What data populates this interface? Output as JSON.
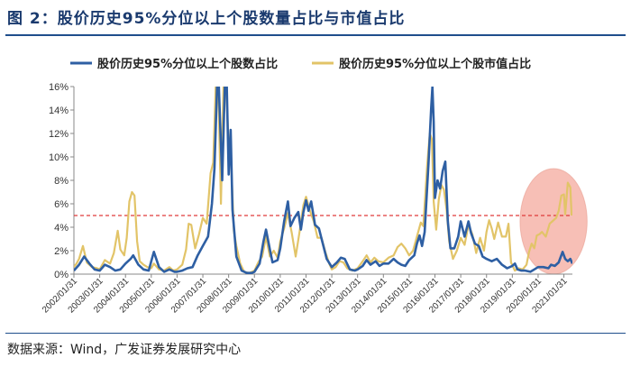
{
  "figure": {
    "title": "图 2：股价历史95%分位以上个股数量占比与市值占比",
    "source": "数据来源：Wind，广发证券发展研究中心"
  },
  "colors": {
    "series_count": "#2e5fa3",
    "series_mcap": "#e2c468",
    "threshold": "#e03a3a",
    "highlight_fill": "#f08a7a",
    "title": "#1a3a6e"
  },
  "chart_data": {
    "type": "line",
    "title": "",
    "xlabel": "",
    "ylabel": "",
    "ylim": [
      0,
      16
    ],
    "ytick_step": 2,
    "yticks": [
      "0%",
      "2%",
      "4%",
      "6%",
      "8%",
      "10%",
      "12%",
      "14%",
      "16%"
    ],
    "xlim": [
      2002.0,
      2021.33
    ],
    "xticks": [
      "2002/01/31",
      "2003/01/31",
      "2004/01/31",
      "2005/01/31",
      "2006/01/31",
      "2007/01/31",
      "2008/01/31",
      "2009/01/31",
      "2010/01/31",
      "2011/01/31",
      "2012/01/31",
      "2013/01/31",
      "2014/01/31",
      "2015/01/31",
      "2016/01/31",
      "2017/01/31",
      "2018/01/31",
      "2019/01/31",
      "2020/01/31",
      "2021/01/31"
    ],
    "reference_line": {
      "y": 5,
      "style": "dashed"
    },
    "highlight_region": {
      "x": [
        2019.3,
        2021.9
      ],
      "y": [
        0,
        9
      ]
    },
    "legend_position": "top",
    "series": [
      {
        "name": "股价历史95%分位以上个股数占比",
        "points": [
          [
            2002.0,
            0.3
          ],
          [
            2002.2,
            0.8
          ],
          [
            2002.4,
            1.5
          ],
          [
            2002.6,
            0.9
          ],
          [
            2002.8,
            0.4
          ],
          [
            2003.0,
            0.3
          ],
          [
            2003.2,
            0.8
          ],
          [
            2003.4,
            0.6
          ],
          [
            2003.6,
            0.3
          ],
          [
            2003.8,
            0.4
          ],
          [
            2004.0,
            0.9
          ],
          [
            2004.2,
            1.3
          ],
          [
            2004.3,
            1.6
          ],
          [
            2004.5,
            0.8
          ],
          [
            2004.7,
            0.4
          ],
          [
            2004.9,
            0.3
          ],
          [
            2005.0,
            1.1
          ],
          [
            2005.1,
            1.9
          ],
          [
            2005.3,
            0.6
          ],
          [
            2005.5,
            0.2
          ],
          [
            2005.7,
            0.4
          ],
          [
            2005.9,
            0.2
          ],
          [
            2006.0,
            0.2
          ],
          [
            2006.2,
            0.3
          ],
          [
            2006.4,
            0.5
          ],
          [
            2006.6,
            0.6
          ],
          [
            2006.8,
            1.6
          ],
          [
            2007.0,
            2.4
          ],
          [
            2007.2,
            3.2
          ],
          [
            2007.35,
            6.0
          ],
          [
            2007.45,
            9.0
          ],
          [
            2007.55,
            16.0
          ],
          [
            2007.62,
            16.0
          ],
          [
            2007.75,
            8.0
          ],
          [
            2007.85,
            16.0
          ],
          [
            2007.93,
            16.0
          ],
          [
            2008.0,
            8.5
          ],
          [
            2008.08,
            12.3
          ],
          [
            2008.15,
            5.5
          ],
          [
            2008.3,
            1.5
          ],
          [
            2008.5,
            0.3
          ],
          [
            2008.7,
            0.1
          ],
          [
            2008.9,
            0.1
          ],
          [
            2009.0,
            0.2
          ],
          [
            2009.2,
            0.9
          ],
          [
            2009.35,
            2.8
          ],
          [
            2009.45,
            3.8
          ],
          [
            2009.6,
            2.1
          ],
          [
            2009.7,
            1.0
          ],
          [
            2009.9,
            1.2
          ],
          [
            2010.0,
            2.2
          ],
          [
            2010.15,
            4.5
          ],
          [
            2010.3,
            6.2
          ],
          [
            2010.4,
            4.1
          ],
          [
            2010.55,
            4.8
          ],
          [
            2010.7,
            5.3
          ],
          [
            2010.8,
            3.8
          ],
          [
            2010.9,
            5.3
          ],
          [
            2011.0,
            6.3
          ],
          [
            2011.1,
            5.4
          ],
          [
            2011.2,
            6.2
          ],
          [
            2011.35,
            4.2
          ],
          [
            2011.5,
            3.9
          ],
          [
            2011.65,
            2.6
          ],
          [
            2011.8,
            1.3
          ],
          [
            2012.0,
            0.6
          ],
          [
            2012.2,
            1.0
          ],
          [
            2012.35,
            1.4
          ],
          [
            2012.5,
            1.3
          ],
          [
            2012.7,
            0.4
          ],
          [
            2012.9,
            0.3
          ],
          [
            2013.0,
            0.4
          ],
          [
            2013.2,
            0.7
          ],
          [
            2013.35,
            1.2
          ],
          [
            2013.5,
            0.8
          ],
          [
            2013.7,
            1.1
          ],
          [
            2013.85,
            0.7
          ],
          [
            2014.0,
            0.9
          ],
          [
            2014.2,
            0.9
          ],
          [
            2014.4,
            1.3
          ],
          [
            2014.55,
            1.0
          ],
          [
            2014.7,
            0.8
          ],
          [
            2014.85,
            0.7
          ],
          [
            2015.0,
            1.2
          ],
          [
            2015.2,
            1.6
          ],
          [
            2015.3,
            2.6
          ],
          [
            2015.4,
            3.3
          ],
          [
            2015.5,
            2.4
          ],
          [
            2015.6,
            3.6
          ],
          [
            2015.75,
            9.5
          ],
          [
            2015.85,
            14.0
          ],
          [
            2015.9,
            16.0
          ],
          [
            2015.95,
            13.0
          ],
          [
            2016.0,
            6.5
          ],
          [
            2016.1,
            8.0
          ],
          [
            2016.2,
            7.3
          ],
          [
            2016.3,
            8.8
          ],
          [
            2016.4,
            9.6
          ],
          [
            2016.5,
            4.5
          ],
          [
            2016.6,
            2.2
          ],
          [
            2016.75,
            2.2
          ],
          [
            2016.9,
            3.2
          ],
          [
            2017.0,
            4.5
          ],
          [
            2017.15,
            3.2
          ],
          [
            2017.3,
            4.5
          ],
          [
            2017.4,
            3.5
          ],
          [
            2017.55,
            2.6
          ],
          [
            2017.7,
            2.4
          ],
          [
            2017.85,
            1.5
          ],
          [
            2018.0,
            1.3
          ],
          [
            2018.2,
            1.1
          ],
          [
            2018.4,
            1.3
          ],
          [
            2018.6,
            0.8
          ],
          [
            2018.8,
            0.5
          ],
          [
            2019.0,
            0.7
          ],
          [
            2019.1,
            0.9
          ],
          [
            2019.2,
            0.4
          ],
          [
            2019.35,
            0.3
          ],
          [
            2019.5,
            0.3
          ],
          [
            2019.7,
            0.2
          ],
          [
            2019.85,
            0.4
          ],
          [
            2020.0,
            0.6
          ],
          [
            2020.2,
            0.6
          ],
          [
            2020.4,
            0.5
          ],
          [
            2020.5,
            0.8
          ],
          [
            2020.65,
            0.7
          ],
          [
            2020.8,
            1.0
          ],
          [
            2020.95,
            1.9
          ],
          [
            2021.05,
            1.3
          ],
          [
            2021.15,
            1.1
          ],
          [
            2021.25,
            1.3
          ],
          [
            2021.33,
            0.9
          ]
        ]
      },
      {
        "name": "股价历史95%分位以上个股市值占比",
        "points": [
          [
            2002.0,
            0.6
          ],
          [
            2002.1,
            0.9
          ],
          [
            2002.2,
            1.3
          ],
          [
            2002.35,
            2.4
          ],
          [
            2002.5,
            1.0
          ],
          [
            2002.7,
            0.6
          ],
          [
            2002.9,
            0.5
          ],
          [
            2003.0,
            0.4
          ],
          [
            2003.2,
            1.2
          ],
          [
            2003.4,
            0.9
          ],
          [
            2003.55,
            1.8
          ],
          [
            2003.7,
            3.7
          ],
          [
            2003.8,
            2.1
          ],
          [
            2003.95,
            1.6
          ],
          [
            2004.05,
            3.1
          ],
          [
            2004.15,
            6.2
          ],
          [
            2004.25,
            7.0
          ],
          [
            2004.35,
            6.7
          ],
          [
            2004.45,
            2.8
          ],
          [
            2004.55,
            1.1
          ],
          [
            2004.7,
            0.8
          ],
          [
            2004.85,
            0.6
          ],
          [
            2005.0,
            0.5
          ],
          [
            2005.1,
            0.9
          ],
          [
            2005.3,
            0.4
          ],
          [
            2005.5,
            0.3
          ],
          [
            2005.7,
            0.6
          ],
          [
            2005.85,
            0.3
          ],
          [
            2006.0,
            0.4
          ],
          [
            2006.2,
            0.8
          ],
          [
            2006.35,
            2.1
          ],
          [
            2006.45,
            4.3
          ],
          [
            2006.55,
            4.2
          ],
          [
            2006.7,
            2.2
          ],
          [
            2006.85,
            3.4
          ],
          [
            2007.0,
            4.8
          ],
          [
            2007.15,
            4.3
          ],
          [
            2007.3,
            8.6
          ],
          [
            2007.4,
            9.5
          ],
          [
            2007.5,
            16.0
          ],
          [
            2007.6,
            16.0
          ],
          [
            2007.7,
            6.0
          ],
          [
            2007.8,
            16.0
          ],
          [
            2007.9,
            16.0
          ],
          [
            2008.0,
            11.0
          ],
          [
            2008.1,
            9.4
          ],
          [
            2008.2,
            3.7
          ],
          [
            2008.3,
            2.4
          ],
          [
            2008.45,
            0.9
          ],
          [
            2008.6,
            0.2
          ],
          [
            2008.8,
            0.1
          ],
          [
            2009.0,
            0.3
          ],
          [
            2009.15,
            1.0
          ],
          [
            2009.3,
            1.5
          ],
          [
            2009.45,
            3.2
          ],
          [
            2009.6,
            1.5
          ],
          [
            2009.75,
            2.0
          ],
          [
            2009.9,
            1.4
          ],
          [
            2010.0,
            2.8
          ],
          [
            2010.15,
            3.9
          ],
          [
            2010.3,
            5.2
          ],
          [
            2010.45,
            3.5
          ],
          [
            2010.6,
            1.5
          ],
          [
            2010.75,
            3.6
          ],
          [
            2010.9,
            5.9
          ],
          [
            2011.0,
            6.6
          ],
          [
            2011.15,
            5.4
          ],
          [
            2011.3,
            4.5
          ],
          [
            2011.45,
            3.1
          ],
          [
            2011.6,
            3.1
          ],
          [
            2011.75,
            1.9
          ],
          [
            2011.9,
            0.9
          ],
          [
            2012.0,
            0.4
          ],
          [
            2012.15,
            0.6
          ],
          [
            2012.3,
            1.1
          ],
          [
            2012.45,
            1.0
          ],
          [
            2012.6,
            0.5
          ],
          [
            2012.8,
            0.3
          ],
          [
            2013.0,
            0.5
          ],
          [
            2013.2,
            1.1
          ],
          [
            2013.35,
            1.6
          ],
          [
            2013.5,
            1.0
          ],
          [
            2013.65,
            1.4
          ],
          [
            2013.8,
            1.1
          ],
          [
            2014.0,
            1.0
          ],
          [
            2014.2,
            1.4
          ],
          [
            2014.4,
            1.6
          ],
          [
            2014.55,
            2.3
          ],
          [
            2014.7,
            2.6
          ],
          [
            2014.85,
            2.2
          ],
          [
            2015.0,
            1.6
          ],
          [
            2015.15,
            2.0
          ],
          [
            2015.3,
            3.2
          ],
          [
            2015.45,
            4.4
          ],
          [
            2015.55,
            4.1
          ],
          [
            2015.7,
            9.3
          ],
          [
            2015.8,
            12.0
          ],
          [
            2015.88,
            11.5
          ],
          [
            2015.95,
            6.2
          ],
          [
            2016.05,
            3.8
          ],
          [
            2016.15,
            6.4
          ],
          [
            2016.25,
            7.6
          ],
          [
            2016.35,
            7.2
          ],
          [
            2016.45,
            5.5
          ],
          [
            2016.55,
            2.8
          ],
          [
            2016.7,
            1.3
          ],
          [
            2016.85,
            2.0
          ],
          [
            2017.0,
            3.1
          ],
          [
            2017.15,
            2.5
          ],
          [
            2017.3,
            4.2
          ],
          [
            2017.45,
            3.4
          ],
          [
            2017.6,
            1.8
          ],
          [
            2017.75,
            3.1
          ],
          [
            2017.9,
            2.0
          ],
          [
            2018.0,
            3.6
          ],
          [
            2018.1,
            4.6
          ],
          [
            2018.2,
            3.9
          ],
          [
            2018.3,
            3.0
          ],
          [
            2018.45,
            4.4
          ],
          [
            2018.6,
            3.2
          ],
          [
            2018.75,
            3.2
          ],
          [
            2018.85,
            4.3
          ],
          [
            2018.95,
            1.0
          ],
          [
            2019.1,
            0.3
          ],
          [
            2019.25,
            0.5
          ],
          [
            2019.4,
            0.4
          ],
          [
            2019.55,
            0.8
          ],
          [
            2019.65,
            1.9
          ],
          [
            2019.75,
            2.6
          ],
          [
            2019.85,
            2.2
          ],
          [
            2019.95,
            3.3
          ],
          [
            2020.05,
            3.4
          ],
          [
            2020.15,
            3.6
          ],
          [
            2020.3,
            3.2
          ],
          [
            2020.45,
            4.3
          ],
          [
            2020.55,
            4.5
          ],
          [
            2020.7,
            4.8
          ],
          [
            2020.8,
            5.4
          ],
          [
            2020.9,
            6.7
          ],
          [
            2021.0,
            6.8
          ],
          [
            2021.05,
            5.1
          ],
          [
            2021.15,
            7.8
          ],
          [
            2021.25,
            7.4
          ],
          [
            2021.3,
            5.0
          ]
        ]
      }
    ]
  }
}
